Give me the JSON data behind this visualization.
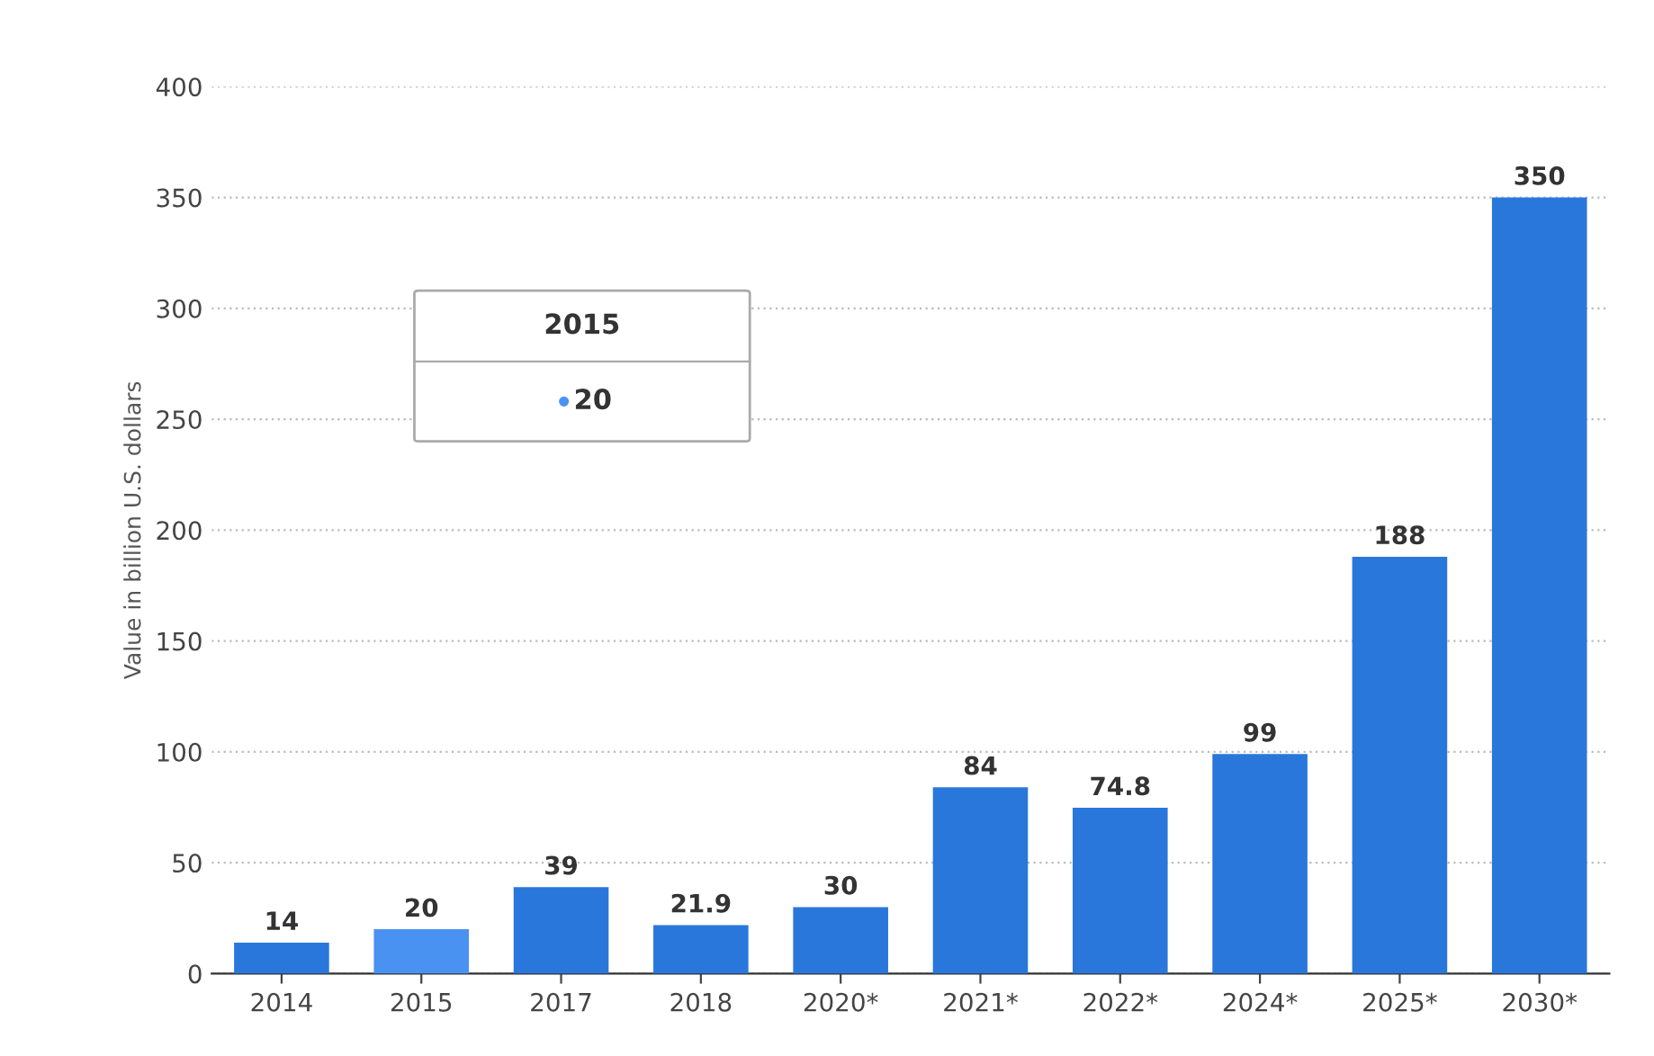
{
  "chart_data": {
    "type": "bar",
    "ylabel": "Value in billion U.S. dollars",
    "categories": [
      "2014",
      "2015",
      "2017",
      "2018",
      "2020*",
      "2021*",
      "2022*",
      "2024*",
      "2025*",
      "2030*"
    ],
    "values": [
      14,
      20,
      39,
      21.9,
      30,
      84,
      74.8,
      99,
      188,
      350
    ],
    "colors": [
      "#2a77dc",
      "#4a92f2",
      "#2a77dc",
      "#2a77dc",
      "#2a77dc",
      "#2a77dc",
      "#2a77dc",
      "#2a77dc",
      "#2a77dc",
      "#2a77dc"
    ],
    "ylim": [
      0,
      400
    ],
    "yticks": [
      0,
      50,
      100,
      150,
      200,
      250,
      300,
      350,
      400
    ],
    "grid": "y",
    "data_labels": true,
    "legend": false,
    "annotations": [
      "2015",
      "20"
    ]
  }
}
